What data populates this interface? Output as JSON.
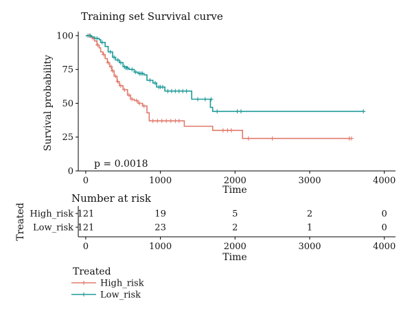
{
  "chart_data": {
    "type": "line",
    "step": true,
    "title": "Training set Survival curve",
    "xlabel": "Time",
    "ylabel": "Survival probability",
    "xlim": [
      -100,
      4150
    ],
    "ylim": [
      0,
      103
    ],
    "xticks": [
      0,
      1000,
      2000,
      3000,
      4000
    ],
    "yticks": [
      0,
      25,
      50,
      75,
      100
    ],
    "annotation": "p = 0.0018",
    "grid": false,
    "legend": {
      "title": "Treated",
      "position": "bottom-left"
    },
    "series": [
      {
        "name": "High_risk",
        "color": "#E07A6A",
        "x": [
          0,
          60,
          90,
          120,
          150,
          180,
          200,
          230,
          260,
          290,
          320,
          350,
          380,
          420,
          450,
          500,
          560,
          600,
          650,
          700,
          760,
          820,
          850,
          1320,
          1700,
          2100,
          3550
        ],
        "y": [
          100,
          99,
          98,
          96,
          93,
          91,
          88,
          86,
          83,
          80,
          77,
          74,
          70,
          66,
          63,
          60,
          56,
          53,
          52,
          50,
          48,
          43,
          37,
          33,
          30,
          24,
          24
        ],
        "censored": [
          [
            50,
            100
          ],
          [
            100,
            98
          ],
          [
            160,
            93
          ],
          [
            240,
            86
          ],
          [
            300,
            80
          ],
          [
            340,
            77
          ],
          [
            360,
            74
          ],
          [
            400,
            70
          ],
          [
            430,
            66
          ],
          [
            470,
            63
          ],
          [
            520,
            60
          ],
          [
            580,
            56
          ],
          [
            620,
            53
          ],
          [
            680,
            52
          ],
          [
            720,
            50
          ],
          [
            780,
            48
          ],
          [
            900,
            37
          ],
          [
            960,
            37
          ],
          [
            1020,
            37
          ],
          [
            1080,
            37
          ],
          [
            1140,
            37
          ],
          [
            1200,
            37
          ],
          [
            1250,
            37
          ],
          [
            1840,
            30
          ],
          [
            1900,
            30
          ],
          [
            1950,
            30
          ],
          [
            2180,
            24
          ],
          [
            2500,
            24
          ],
          [
            3530,
            24
          ],
          [
            3560,
            24
          ]
        ]
      },
      {
        "name": "Low_risk",
        "color": "#1E9A98",
        "x": [
          0,
          80,
          120,
          180,
          200,
          260,
          300,
          360,
          400,
          450,
          500,
          550,
          580,
          650,
          700,
          780,
          820,
          900,
          950,
          1060,
          1420,
          1670,
          1700,
          3720
        ],
        "y": [
          100,
          99,
          98,
          97,
          95,
          92,
          88,
          84,
          82,
          80,
          77,
          76,
          75,
          73,
          72,
          71,
          67,
          65,
          62,
          59,
          53,
          47,
          44,
          44
        ],
        "censored": [
          [
            30,
            100
          ],
          [
            60,
            100
          ],
          [
            150,
            98
          ],
          [
            220,
            95
          ],
          [
            330,
            88
          ],
          [
            380,
            84
          ],
          [
            430,
            82
          ],
          [
            470,
            80
          ],
          [
            520,
            77
          ],
          [
            540,
            76
          ],
          [
            560,
            76
          ],
          [
            620,
            75
          ],
          [
            670,
            73
          ],
          [
            720,
            72
          ],
          [
            740,
            72
          ],
          [
            760,
            72
          ],
          [
            860,
            67
          ],
          [
            930,
            65
          ],
          [
            980,
            62
          ],
          [
            1000,
            62
          ],
          [
            1030,
            62
          ],
          [
            1100,
            59
          ],
          [
            1150,
            59
          ],
          [
            1200,
            59
          ],
          [
            1250,
            59
          ],
          [
            1300,
            59
          ],
          [
            1350,
            59
          ],
          [
            1500,
            53
          ],
          [
            1600,
            53
          ],
          [
            1680,
            53
          ],
          [
            1760,
            44
          ],
          [
            2030,
            44
          ],
          [
            2080,
            44
          ],
          [
            3720,
            44
          ]
        ]
      }
    ]
  },
  "risk_table": {
    "title": "Number at risk",
    "group_axis_label": "Treated",
    "xlabel": "Time",
    "times": [
      0,
      1000,
      2000,
      3000,
      4000
    ],
    "rows": [
      {
        "label": "High_risk",
        "counts": [
          "121",
          "19",
          "5",
          "2",
          "0"
        ]
      },
      {
        "label": "Low_risk",
        "counts": [
          "121",
          "23",
          "2",
          "1",
          "0"
        ]
      }
    ]
  }
}
